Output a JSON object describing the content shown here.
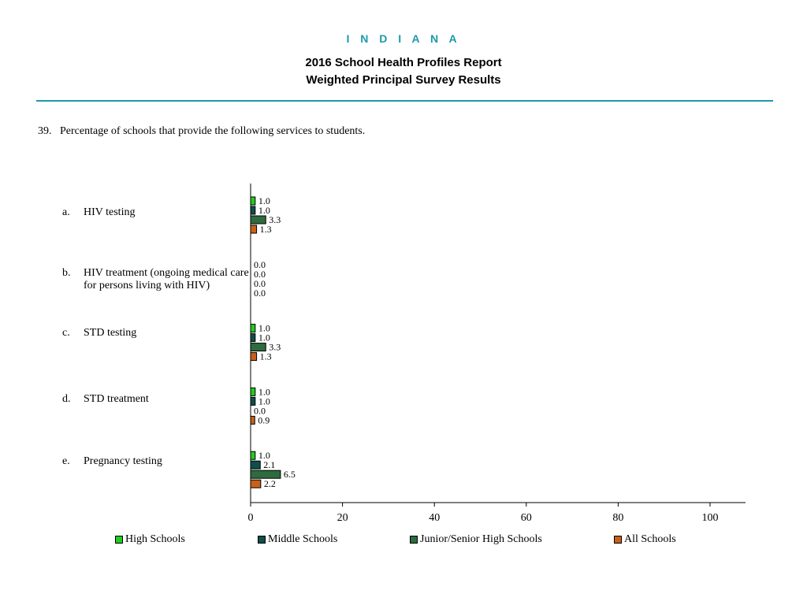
{
  "header": {
    "state": "I N D I A N A",
    "title": "2016 School Health Profiles Report",
    "subtitle": "Weighted Principal Survey Results"
  },
  "question": {
    "number": "39.",
    "text": "Percentage of schools that provide the following services to students."
  },
  "chart_data": {
    "type": "bar",
    "orientation": "horizontal",
    "categories": [
      {
        "letter": "a.",
        "lines": [
          "HIV testing"
        ]
      },
      {
        "letter": "b.",
        "lines": [
          "HIV treatment (ongoing medical care",
          "for persons living with HIV)"
        ]
      },
      {
        "letter": "c.",
        "lines": [
          "STD testing"
        ]
      },
      {
        "letter": "d.",
        "lines": [
          "STD treatment"
        ]
      },
      {
        "letter": "e.",
        "lines": [
          "Pregnancy testing"
        ]
      }
    ],
    "series": [
      {
        "name": "High Schools",
        "color": "#22cc22",
        "values": [
          1.0,
          0.0,
          1.0,
          1.0,
          1.0
        ],
        "labels": [
          "1.0",
          "0.0",
          "1.0",
          "1.0",
          "1.0"
        ]
      },
      {
        "name": "Middle Schools",
        "color": "#0d4f4a",
        "values": [
          1.0,
          0.0,
          1.0,
          1.0,
          2.1
        ],
        "labels": [
          "1.0",
          "0.0",
          "1.0",
          "1.0",
          "2.1"
        ]
      },
      {
        "name": "Junior/Senior High Schools",
        "color": "#2e6b3e",
        "values": [
          3.3,
          0.0,
          3.3,
          0.0,
          6.5
        ],
        "labels": [
          "3.3",
          "0.0",
          "3.3",
          "0.0",
          "6.5"
        ]
      },
      {
        "name": "All Schools",
        "color": "#c8601a",
        "values": [
          1.3,
          0.0,
          1.3,
          0.9,
          2.2
        ],
        "labels": [
          "1.3",
          "0.0",
          "1.3",
          "0.9",
          "2.2"
        ]
      }
    ],
    "xlim": [
      0,
      100
    ],
    "xticks": [
      "0",
      "20",
      "40",
      "60",
      "80",
      "100"
    ],
    "grid": false,
    "legend_position": "bottom"
  }
}
